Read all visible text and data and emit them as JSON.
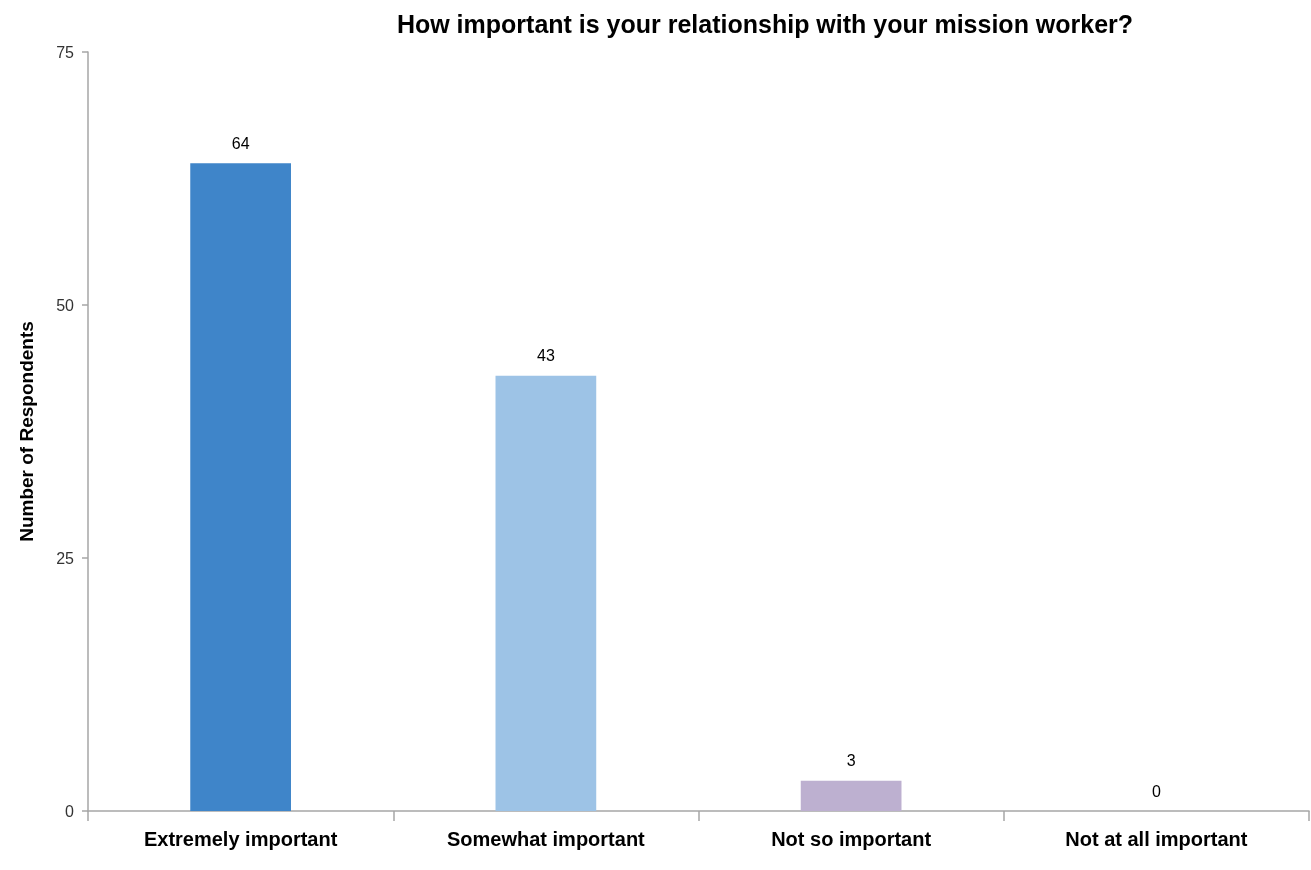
{
  "chart_data": {
    "type": "bar",
    "title": "How important is your relationship with your mission worker?",
    "ylabel": "Number of Respondents",
    "categories": [
      "Extremely important",
      "Somewhat important",
      "Not so important",
      "Not at all important"
    ],
    "values": [
      64,
      43,
      3,
      0
    ],
    "colors": [
      "#3f85c9",
      "#9dc3e6",
      "#bdb0d0",
      "#a5a5a5"
    ],
    "ylim": [
      0,
      75
    ],
    "yticks": [
      0,
      25,
      50,
      75
    ],
    "grid": false,
    "data_labels": true
  }
}
